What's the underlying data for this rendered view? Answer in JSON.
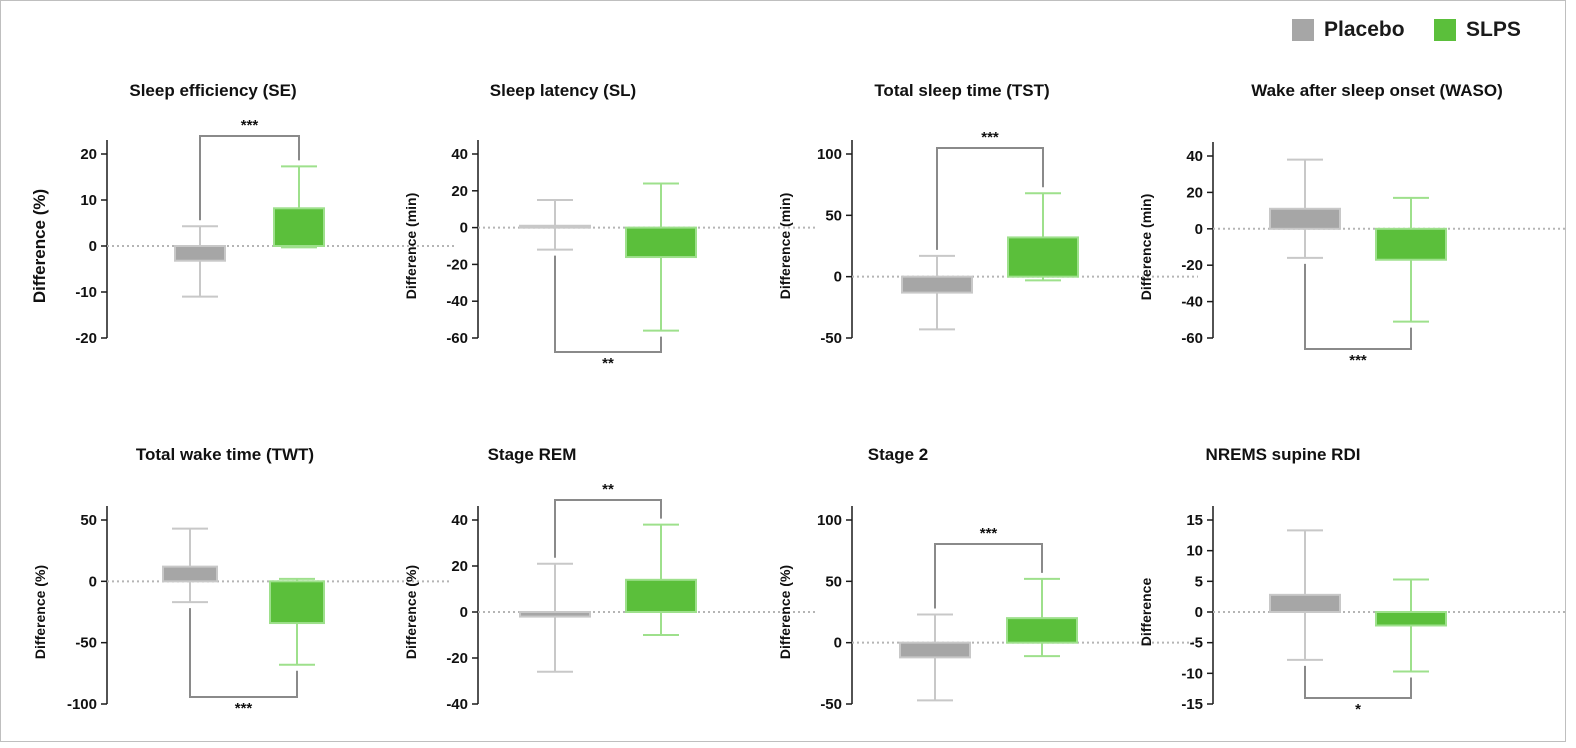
{
  "legend": [
    {
      "name": "Placebo",
      "color": "#a6a6a6"
    },
    {
      "name": "SLPS",
      "color": "#5bbf3b"
    }
  ],
  "colors": {
    "placebo_fill": "#a6a6a6",
    "placebo_stroke": "#c8c8c8",
    "slps_fill": "#5bbf3b",
    "slps_stroke": "#9ee08c",
    "axis": "#1a1a1a",
    "sig": "#8a8a8a"
  },
  "chart_data": [
    {
      "type": "bar",
      "title": "Sleep efficiency (SE)",
      "ylabel": "Difference (%)",
      "ylim": [
        -20,
        20
      ],
      "ticks": [
        "20",
        "10",
        "0",
        "-10",
        "-20"
      ],
      "tick_values": [
        20,
        10,
        0,
        -10,
        -20
      ],
      "categories": [
        "Placebo",
        "SLPS"
      ],
      "series": [
        {
          "name": "Placebo",
          "value": -3.2,
          "error_low": -11,
          "error_high": 4.3
        },
        {
          "name": "SLPS",
          "value": 8.2,
          "error_low": -0.3,
          "error_high": 17.3
        }
      ],
      "significance": "***",
      "bracket": "top"
    },
    {
      "type": "bar",
      "title": "Sleep latency (SL)",
      "ylabel": "Difference (min)",
      "ylim": [
        -60,
        40
      ],
      "ticks": [
        "40",
        "20",
        "0",
        "-20",
        "-40",
        "-60"
      ],
      "tick_values": [
        40,
        20,
        0,
        -20,
        -40,
        -60
      ],
      "categories": [
        "Placebo",
        "SLPS"
      ],
      "series": [
        {
          "name": "Placebo",
          "value": 1,
          "error_low": -12,
          "error_high": 15
        },
        {
          "name": "SLPS",
          "value": -16,
          "error_low": -56,
          "error_high": 24
        }
      ],
      "significance": "**",
      "bracket": "bottom"
    },
    {
      "type": "bar",
      "title": "Total sleep time (TST)",
      "ylabel": "Difference (min)",
      "ylim": [
        -50,
        100
      ],
      "ticks": [
        "100",
        "50",
        "0",
        "-50"
      ],
      "tick_values": [
        100,
        50,
        0,
        -50
      ],
      "categories": [
        "Placebo",
        "SLPS"
      ],
      "series": [
        {
          "name": "Placebo",
          "value": -13,
          "error_low": -43,
          "error_high": 17
        },
        {
          "name": "SLPS",
          "value": 32,
          "error_low": -3,
          "error_high": 68
        }
      ],
      "significance": "***",
      "bracket": "top"
    },
    {
      "type": "bar",
      "title": "Wake after sleep onset (WASO)",
      "ylabel": "Difference (min)",
      "ylim": [
        -60,
        40
      ],
      "ticks": [
        "40",
        "20",
        "0",
        "-20",
        "-40",
        "-60"
      ],
      "tick_values": [
        40,
        20,
        0,
        -20,
        -40,
        -60
      ],
      "categories": [
        "Placebo",
        "SLPS"
      ],
      "series": [
        {
          "name": "Placebo",
          "value": 11,
          "error_low": -16,
          "error_high": 38
        },
        {
          "name": "SLPS",
          "value": -17,
          "error_low": -51,
          "error_high": 17
        }
      ],
      "significance": "***",
      "bracket": "bottom"
    },
    {
      "type": "bar",
      "title": "Total wake time (TWT)",
      "ylabel": "Difference (%)",
      "ylim": [
        -100,
        50
      ],
      "ticks": [
        "50",
        "0",
        "-50",
        "-100"
      ],
      "tick_values": [
        50,
        0,
        -50,
        -100
      ],
      "categories": [
        "Placebo",
        "SLPS"
      ],
      "series": [
        {
          "name": "Placebo",
          "value": 12,
          "error_low": -17,
          "error_high": 43
        },
        {
          "name": "SLPS",
          "value": -34,
          "error_low": -68,
          "error_high": 2
        }
      ],
      "significance": "***",
      "bracket": "bottom"
    },
    {
      "type": "bar",
      "title": "Stage REM",
      "ylabel": "Difference (%)",
      "ylim": [
        -40,
        40
      ],
      "ticks": [
        "40",
        "20",
        "0",
        "-20",
        "-40"
      ],
      "tick_values": [
        40,
        20,
        0,
        -20,
        -40
      ],
      "categories": [
        "Placebo",
        "SLPS"
      ],
      "series": [
        {
          "name": "Placebo",
          "value": -2,
          "error_low": -26,
          "error_high": 21
        },
        {
          "name": "SLPS",
          "value": 14,
          "error_low": -10,
          "error_high": 38
        }
      ],
      "significance": "**",
      "bracket": "top"
    },
    {
      "type": "bar",
      "title": "Stage 2",
      "ylabel": "Difference (%)",
      "ylim": [
        -50,
        100
      ],
      "ticks": [
        "100",
        "50",
        "0",
        "-50"
      ],
      "tick_values": [
        100,
        50,
        0,
        -50
      ],
      "categories": [
        "Placebo",
        "SLPS"
      ],
      "series": [
        {
          "name": "Placebo",
          "value": -12,
          "error_low": -47,
          "error_high": 23
        },
        {
          "name": "SLPS",
          "value": 20,
          "error_low": -11,
          "error_high": 52
        }
      ],
      "significance": "***",
      "bracket": "top"
    },
    {
      "type": "bar",
      "title": "NREMS supine RDI",
      "ylabel": "Difference",
      "ylim": [
        -15,
        15
      ],
      "ticks": [
        "15",
        "10",
        "5",
        "0",
        "-5",
        "-10",
        "-15"
      ],
      "tick_values": [
        15,
        10,
        5,
        0,
        -5,
        -10,
        -15
      ],
      "categories": [
        "Placebo",
        "SLPS"
      ],
      "series": [
        {
          "name": "Placebo",
          "value": 2.8,
          "error_low": -7.8,
          "error_high": 13.3
        },
        {
          "name": "SLPS",
          "value": -2.2,
          "error_low": -9.7,
          "error_high": 5.3
        }
      ],
      "significance": "*",
      "bracket": "bottom"
    }
  ]
}
